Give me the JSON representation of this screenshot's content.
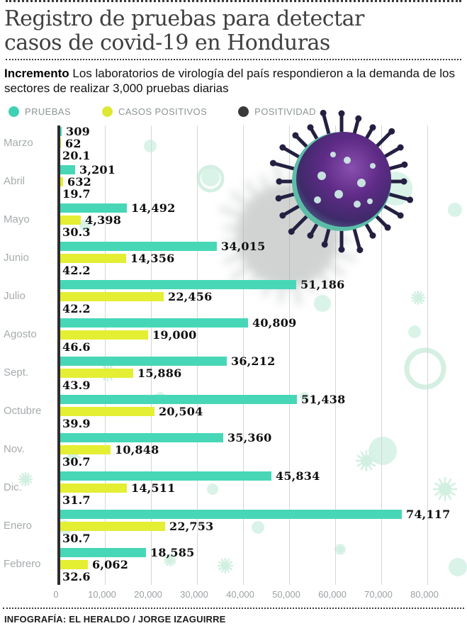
{
  "title": "Registro de pruebas para detectar casos de covid-19 en Honduras",
  "subtitle": {
    "lead": "Incremento",
    "text": "Los laboratorios de virología del país respondieron a la demanda de los sectores de realizar 3,000 pruebas diarias"
  },
  "legend": [
    {
      "label": "PRUEBAS",
      "color": "#3ed2b2"
    },
    {
      "label": "CASOS POSITIVOS",
      "color": "#dde832"
    },
    {
      "label": "POSITIVIDAD",
      "color": "#3a3a3a"
    }
  ],
  "footer": "INFOGRAFÍA: EL HERALDO / JORGE IZAGUIRRE",
  "chart_data": {
    "type": "bar",
    "orientation": "horizontal",
    "title": "Registro de pruebas para detectar casos de covid-19 en Honduras",
    "xlim": [
      0,
      80000
    ],
    "grid": true,
    "x_ticks": [
      "0",
      "10,000",
      "20,000",
      "30,000",
      "40,000",
      "50,000",
      "60,000",
      "70,000",
      "80,000"
    ],
    "x_tick_values": [
      0,
      10000,
      20000,
      30000,
      40000,
      50000,
      60000,
      70000,
      80000
    ],
    "categories": [
      "Marzo",
      "Abril",
      "Mayo",
      "Junio",
      "Julio",
      "Agosto",
      "Sept.",
      "Octubre",
      "Nov.",
      "Dic.",
      "Enero",
      "Febrero"
    ],
    "series": [
      {
        "name": "PRUEBAS",
        "color": "#47d7b7",
        "values": [
          309,
          3201,
          14492,
          34015,
          51186,
          40809,
          36212,
          51438,
          35360,
          45834,
          74117,
          18585
        ],
        "labels": [
          "309",
          "3,201",
          "14,492",
          "34,015",
          "51,186",
          "40,809",
          "36,212",
          "51,438",
          "35,360",
          "45,834",
          "74,117",
          "18,585"
        ]
      },
      {
        "name": "CASOS POSITIVOS",
        "color": "#e4ee33",
        "values": [
          62,
          632,
          4398,
          14356,
          22456,
          19000,
          15886,
          20504,
          10848,
          14511,
          22753,
          6062
        ],
        "labels": [
          "62",
          "632",
          "4,398",
          "14,356",
          "22,456",
          "19,000",
          "15,886",
          "20,504",
          "10,848",
          "14,511",
          "22,753",
          "6,062"
        ]
      },
      {
        "name": "POSITIVIDAD",
        "color": "#3a3a3a",
        "values": [
          20.1,
          19.7,
          30.3,
          42.2,
          42.2,
          46.6,
          43.9,
          39.9,
          30.7,
          31.7,
          30.7,
          32.6
        ],
        "labels": [
          "20.1",
          "19.7",
          "30.3",
          "42.2",
          "42.2",
          "46.6",
          "43.9",
          "39.9",
          "30.7",
          "31.7",
          "30.7",
          "32.6"
        ]
      }
    ]
  }
}
